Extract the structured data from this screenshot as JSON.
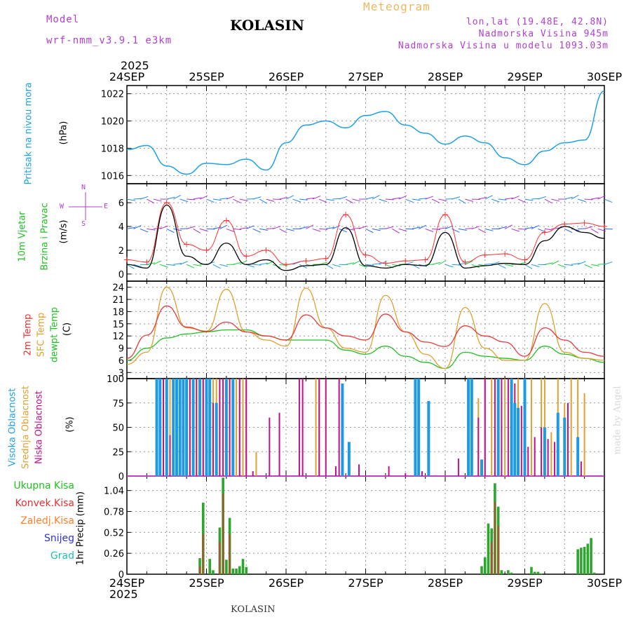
{
  "header": {
    "model_label": "Model",
    "model_name": "wrf-nmm_v3.9.1 e3km",
    "location": "KOLASIN",
    "product": "Meteogram",
    "coords": "lon,lat (19.48E, 42.8N)",
    "altitude": "Nadmorska Visina 945m",
    "model_altitude": "Nadmorska Visina u modelu 1093.03m"
  },
  "footer": {
    "location": "KOLASIN",
    "watermark": "made by Angel"
  },
  "time_axis": {
    "year": "2025",
    "dates": [
      "24SEP",
      "25SEP",
      "26SEP",
      "27SEP",
      "28SEP",
      "29SEP",
      "30SEP"
    ]
  },
  "panels": {
    "pressure": {
      "label": "Pritisak na nivou mora",
      "unit": "(hPa)"
    },
    "wind": {
      "label_line1": "10m Vjetar",
      "label_line2": "Brzina i Pravac",
      "unit": "(m/s)",
      "compass": [
        "W",
        "S",
        "E",
        "N"
      ]
    },
    "temp": {
      "label1": "2m Temp",
      "label2": "SFC Temp",
      "label3": "dewpt Temp",
      "unit": "(C)"
    },
    "cloud": {
      "label1": "Visoka Oblacnost",
      "label2": "Srednja Oblacnost",
      "label3": "Niska Oblacnost",
      "unit": "(%)"
    },
    "precip": {
      "axis_label": "1hr Precip (mm)",
      "legend": [
        "Ukupna Kisa",
        "Konvek.Kisa",
        "Zaledj.Kisa",
        "Snijeg",
        "Grad"
      ]
    }
  },
  "colors": {
    "pressure": "#1ea0e6",
    "temp2m": "#e83a3a",
    "sfc": "#e0a030",
    "dewpt": "#20c020",
    "wind_speed": "#000000",
    "wind_gust": "#ff3030",
    "cloud_high": "#1e9be0",
    "cloud_mid": "#e0a030",
    "cloud_low": "#c0108a",
    "rain_total": "#2ea62e",
    "rain_conv": "#e03030",
    "precip_olive": "#6b8e23",
    "legend_total": "#20c020",
    "legend_conv": "#e83030",
    "legend_frz": "#ff7f27",
    "legend_snow": "#3030e0",
    "legend_hail": "#20c0b0",
    "label_purple": "#b040d0",
    "label_cyan": "#1ea0e6",
    "label_green": "#20c020",
    "label_red": "#e83030",
    "label_orange": "#e0a030",
    "label_magenta": "#c0108a"
  },
  "chart_data": [
    {
      "type": "line",
      "title": "Pritisak na nivou mora",
      "ylabel": "(hPa)",
      "ylim": [
        1015.4,
        1022.6
      ],
      "yticks": [
        1016,
        1018,
        1020,
        1022
      ],
      "x": [
        0,
        6,
        12,
        18,
        24,
        30,
        36,
        42,
        48,
        54,
        60,
        66,
        72,
        78,
        84,
        90,
        96,
        102,
        108,
        114,
        120,
        126,
        132,
        138,
        144
      ],
      "series": [
        {
          "name": "MSLP",
          "values": [
            1017.9,
            1018.2,
            1016.7,
            1016.1,
            1016.9,
            1016.8,
            1017.2,
            1016.4,
            1018.4,
            1019.7,
            1020.0,
            1019.5,
            1020.4,
            1020.7,
            1019.7,
            1019.1,
            1018.3,
            1018.9,
            1018.4,
            1017.3,
            1016.8,
            1017.8,
            1018.4,
            1018.6,
            1022.2
          ]
        }
      ]
    },
    {
      "type": "line",
      "title": "10m Vjetar Brzina i Pravac",
      "ylabel": "(m/s)",
      "ylim": [
        -0.6,
        7.6
      ],
      "yticks": [
        0,
        2,
        4,
        6
      ],
      "x": [
        0,
        6,
        12,
        18,
        24,
        30,
        36,
        42,
        48,
        54,
        60,
        66,
        72,
        78,
        84,
        90,
        96,
        102,
        108,
        114,
        120,
        126,
        132,
        138,
        144
      ],
      "series": [
        {
          "name": "wind speed",
          "values": [
            0.8,
            0.5,
            5.8,
            1.5,
            0.8,
            2.6,
            0.8,
            1.2,
            0.3,
            0.7,
            0.8,
            3.9,
            0.7,
            0.5,
            0.8,
            0.7,
            3.5,
            0.5,
            0.7,
            0.9,
            0.8,
            2.8,
            4.0,
            3.5,
            3.0
          ]
        },
        {
          "name": "wind gust",
          "values": [
            1.2,
            1.0,
            6.0,
            2.5,
            2.0,
            4.5,
            1.5,
            2.0,
            0.8,
            1.1,
            1.3,
            5.0,
            1.6,
            0.9,
            1.1,
            1.2,
            5.0,
            1.0,
            1.6,
            1.7,
            1.2,
            3.5,
            4.2,
            4.3,
            4.0
          ]
        }
      ]
    },
    {
      "type": "line",
      "title": "Temperature",
      "ylabel": "(C)",
      "ylim": [
        1.5,
        25.5
      ],
      "yticks": [
        3,
        6,
        9,
        12,
        15,
        18,
        21,
        24
      ],
      "x": [
        0,
        6,
        12,
        18,
        24,
        30,
        36,
        42,
        48,
        54,
        60,
        66,
        72,
        78,
        84,
        90,
        96,
        102,
        108,
        114,
        120,
        126,
        132,
        138,
        144
      ],
      "series": [
        {
          "name": "2m Temp",
          "values": [
            6.5,
            12.2,
            19.4,
            14.2,
            13.1,
            15.4,
            13.0,
            12.0,
            11.0,
            17.2,
            14.0,
            12.0,
            11.0,
            17.4,
            13.0,
            10.5,
            9.4,
            14.5,
            12.0,
            10.5,
            7.0,
            14.0,
            11.0,
            8.0,
            7.0
          ]
        },
        {
          "name": "SFC Temp",
          "values": [
            5.0,
            8.0,
            24.0,
            14.0,
            13.2,
            23.5,
            13.0,
            11.0,
            9.5,
            23.8,
            14.0,
            9.0,
            8.0,
            22.0,
            13.0,
            7.5,
            4.0,
            19.0,
            9.0,
            6.0,
            6.0,
            20.0,
            8.0,
            6.5,
            6.0
          ]
        },
        {
          "name": "dewpt Temp",
          "values": [
            6.0,
            9.0,
            11.5,
            12.5,
            13.0,
            13.5,
            13.5,
            12.0,
            11.0,
            11.0,
            11.0,
            8.5,
            7.5,
            9.5,
            7.0,
            5.5,
            4.0,
            8.0,
            7.0,
            6.5,
            6.0,
            9.5,
            7.5,
            6.5,
            5.5
          ]
        }
      ]
    },
    {
      "type": "bar",
      "title": "Oblacnost",
      "ylabel": "(%)",
      "ylim": [
        0,
        100
      ],
      "yticks": [
        0,
        25,
        50,
        75,
        100
      ],
      "series": [
        {
          "name": "Visoka Oblacnost",
          "x": [
            9,
            10,
            12,
            14,
            15,
            16,
            17,
            18,
            20,
            22,
            24,
            25,
            27,
            30,
            32,
            65,
            67,
            87,
            88,
            91,
            103,
            104,
            107,
            112,
            116,
            117,
            118,
            120,
            126,
            130,
            132,
            136
          ],
          "values": [
            100,
            100,
            100,
            100,
            100,
            100,
            100,
            100,
            100,
            100,
            100,
            100,
            75,
            100,
            100,
            95,
            35,
            100,
            100,
            77,
            100,
            100,
            17,
            100,
            100,
            75,
            70,
            100,
            50,
            65,
            60,
            40
          ]
        },
        {
          "name": "Srednja Oblacnost",
          "x": [
            9,
            10,
            11,
            12,
            13,
            14,
            15,
            16,
            17,
            18,
            19,
            20,
            21,
            22,
            23,
            24,
            25,
            26,
            27,
            28,
            29,
            30,
            31,
            32,
            33,
            34,
            35,
            36,
            39,
            57,
            58,
            104,
            106,
            108,
            110,
            112,
            114,
            116,
            118,
            120,
            122,
            125,
            126,
            128,
            130,
            132,
            134,
            136,
            138
          ],
          "values": [
            100,
            100,
            100,
            100,
            100,
            100,
            100,
            100,
            100,
            100,
            100,
            100,
            100,
            100,
            100,
            100,
            100,
            100,
            100,
            100,
            100,
            100,
            100,
            100,
            100,
            100,
            100,
            100,
            25,
            100,
            100,
            100,
            80,
            100,
            100,
            100,
            100,
            100,
            100,
            100,
            100,
            100,
            100,
            45,
            100,
            75,
            100,
            100,
            85
          ]
        },
        {
          "name": "Niska Oblacnost",
          "x": [
            11,
            13,
            15,
            19,
            21,
            23,
            26,
            28,
            29,
            31,
            34,
            36,
            38,
            43,
            46,
            52,
            53,
            58,
            60,
            63,
            64,
            70,
            79,
            84,
            89,
            100,
            103,
            106,
            108,
            111,
            113,
            115,
            117,
            119,
            121,
            123,
            125,
            127,
            129,
            133,
            137
          ],
          "values": [
            100,
            42,
            100,
            100,
            100,
            100,
            75,
            100,
            100,
            100,
            100,
            100,
            5,
            60,
            65,
            100,
            100,
            100,
            100,
            10,
            100,
            12,
            10,
            3,
            5,
            18,
            5,
            60,
            100,
            100,
            100,
            100,
            95,
            72,
            30,
            40,
            50,
            38,
            35,
            75,
            15
          ]
        }
      ]
    },
    {
      "type": "bar",
      "title": "1hr Precip",
      "ylabel": "1hr Precip (mm)",
      "ylim": [
        0,
        1.22
      ],
      "yticks": [
        0,
        0.26,
        0.52,
        0.78,
        1.04
      ],
      "series": [
        {
          "name": "Ukupna Kisa",
          "x": [
            22,
            23,
            24,
            25,
            26,
            27,
            28,
            29,
            30,
            31,
            32,
            33,
            34,
            35,
            36,
            37,
            107,
            108,
            109,
            110,
            111,
            112,
            113,
            114,
            115,
            116,
            122,
            123,
            124,
            125,
            136,
            137,
            138,
            139,
            140,
            141
          ],
          "values": [
            0.2,
            0.89,
            0.0,
            0.19,
            0.05,
            0.0,
            0.58,
            1.2,
            0.18,
            0.7,
            0.07,
            0.07,
            0.1,
            0.19,
            0.09,
            0.0,
            0.1,
            0.21,
            0.63,
            0.57,
            1.13,
            0.84,
            0.05,
            0.0,
            0.05,
            0.02,
            0.09,
            0.03,
            0.03,
            0.01,
            0.31,
            0.33,
            0.34,
            0.38,
            0.45,
            0.02
          ]
        },
        {
          "name": "Konvek.Kisa",
          "x": [
            22,
            23,
            28,
            29,
            31,
            110,
            111,
            112
          ],
          "values": [
            0.1,
            0.5,
            0.4,
            1.0,
            0.5,
            0.4,
            0.9,
            0.6
          ]
        }
      ]
    }
  ]
}
